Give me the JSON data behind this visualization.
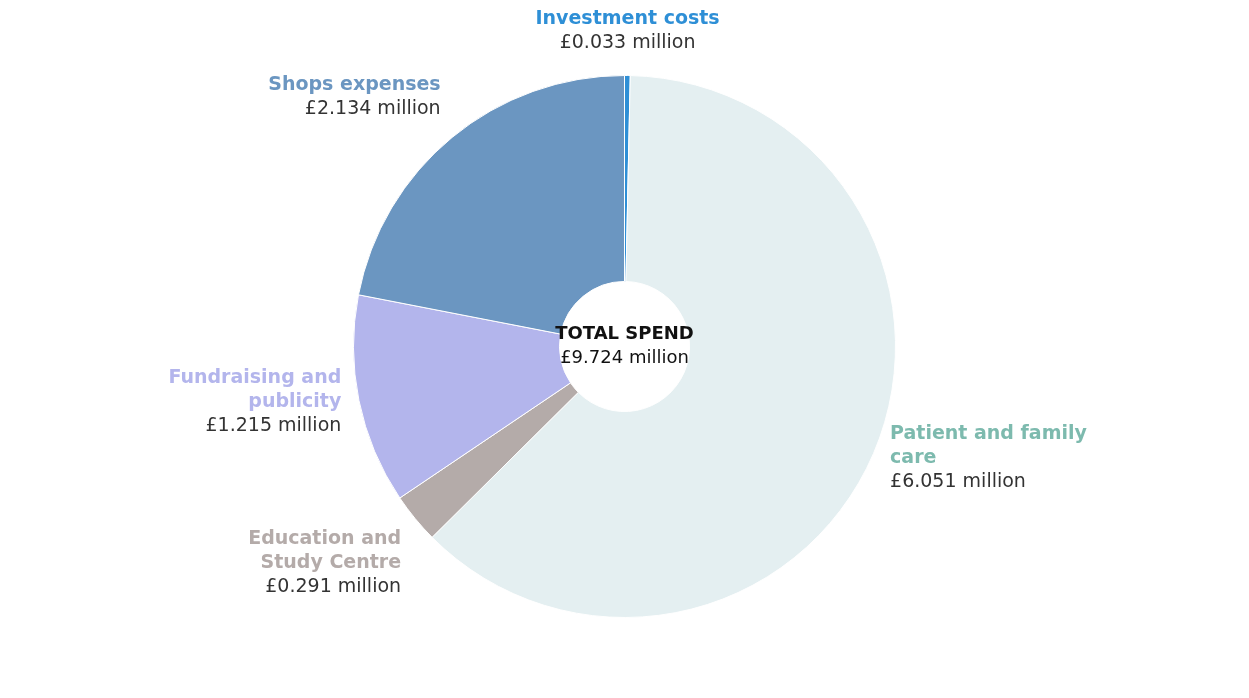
{
  "chart_data": {
    "type": "donut",
    "categories": [
      "Investment costs",
      "Patient and family care",
      "Education and Study Centre",
      "Fundraising and publicity",
      "Shops expenses"
    ],
    "values": [
      0.033,
      6.051,
      0.291,
      1.215,
      2.134
    ],
    "value_labels": [
      "£0.033 million",
      "£6.051 million",
      "£0.291 million",
      "£1.215 million",
      "£2.134 million"
    ],
    "colors": [
      "#2e8fd6",
      "#e4eff1",
      "#b4aba9",
      "#b3b5ec",
      "#6b96c1"
    ],
    "annotations": [
      "TOTAL SPEND",
      "£9.724 million"
    ],
    "legend": false
  }
}
